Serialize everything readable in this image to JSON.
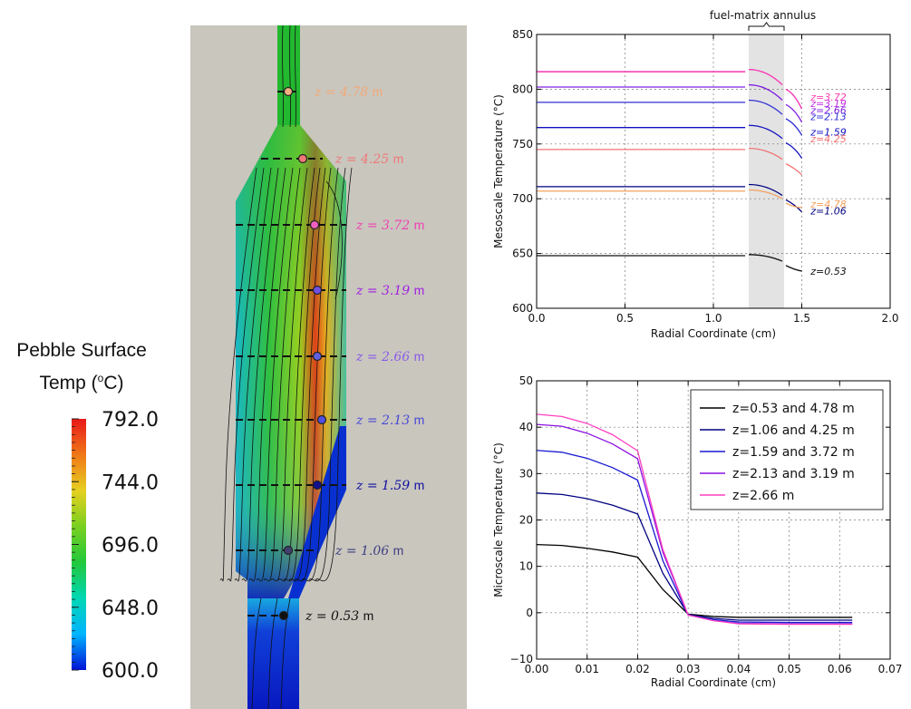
{
  "colorbar": {
    "title_line1": "Pebble Surface",
    "title_line2": "Temp (",
    "title_sup": "o",
    "title_line2_end": "C)",
    "ticks": [
      "792.0",
      "744.0",
      "696.0",
      "648.0",
      "600.0"
    ],
    "tick_values": [
      792,
      744,
      696,
      648,
      600
    ],
    "min": 600,
    "max": 792,
    "colors": [
      "#0014d6",
      "#00b4ff",
      "#00d7b4",
      "#22c83c",
      "#7ad020",
      "#e6d020",
      "#f07818",
      "#e81818"
    ]
  },
  "core": {
    "background": "#c9c6be",
    "labels": [
      {
        "z": "z = 4.78",
        "unit": "m",
        "color": "#f4a878"
      },
      {
        "z": "z = 4.25",
        "unit": "m",
        "color": "#f07878"
      },
      {
        "z": "z = 3.72",
        "unit": "m",
        "color": "#f040b0"
      },
      {
        "z": "z = 3.19",
        "unit": "m",
        "color": "#a020e0"
      },
      {
        "z": "z = 2.66",
        "unit": "m",
        "color": "#8a5ae8"
      },
      {
        "z": "z = 2.13",
        "unit": "m",
        "color": "#4848d8"
      },
      {
        "z": "z = 1.59",
        "unit": "m",
        "color": "#1010a0"
      },
      {
        "z": "z = 1.06",
        "unit": "m",
        "color": "#404080"
      },
      {
        "z": "z = 0.53",
        "unit": "m",
        "color": "#101010"
      }
    ]
  },
  "chart_data": [
    {
      "type": "line",
      "annotation": "fuel-matrix annulus",
      "xlabel": "Radial Coordinate (cm)",
      "ylabel": "Mesoscale Temperature (°C)",
      "xlim": [
        0.0,
        2.0
      ],
      "ylim": [
        600,
        850
      ],
      "xticks": [
        "0.0",
        "0.5",
        "1.0",
        "1.5",
        "2.0"
      ],
      "yticks": [
        "600",
        "650",
        "700",
        "750",
        "800",
        "850"
      ],
      "grid": true,
      "shaded_region": [
        1.2,
        1.4
      ],
      "series": [
        {
          "name": "z=0.53",
          "color": "#111111",
          "plateau": 648,
          "inner": 649,
          "mid": 643,
          "outer": 634
        },
        {
          "name": "z=1.06",
          "color": "#000080",
          "plateau": 711,
          "inner": 713,
          "mid": 703,
          "outer": 688
        },
        {
          "name": "z=4.78",
          "color": "#f4a060",
          "plateau": 707,
          "inner": 708,
          "mid": 700,
          "outer": 692
        },
        {
          "name": "z=4.25",
          "color": "#f07070",
          "plateau": 745,
          "inner": 746,
          "mid": 736,
          "outer": 722
        },
        {
          "name": "z=1.59",
          "color": "#1010c0",
          "plateau": 765,
          "inner": 767,
          "mid": 755,
          "outer": 737
        },
        {
          "name": "z=2.13",
          "color": "#3030d8",
          "plateau": 788,
          "inner": 790,
          "mid": 777,
          "outer": 758
        },
        {
          "name": "z=2.66",
          "color": "#8020e0",
          "plateau": 802,
          "inner": 804,
          "mid": 790,
          "outer": 770
        },
        {
          "name": "z=3.19",
          "color": "#c030e8",
          "plateau": 816,
          "inner": 818,
          "mid": 804,
          "outer": 782
        },
        {
          "name": "z=3.72",
          "color": "#ff40b0",
          "plateau": 816,
          "inner": 818,
          "mid": 804,
          "outer": 782
        }
      ],
      "right_labels": [
        {
          "text": "z=3.72",
          "color": "#ff40b0",
          "y": 793
        },
        {
          "text": "z=3.19",
          "color": "#c030e8",
          "y": 787
        },
        {
          "text": "z=2.66",
          "color": "#8020e0",
          "y": 781
        },
        {
          "text": "z=2.13",
          "color": "#3030d8",
          "y": 775
        },
        {
          "text": "z=1.59",
          "color": "#1010c0",
          "y": 761
        },
        {
          "text": "z=4.25",
          "color": "#f07070",
          "y": 755
        },
        {
          "text": "z=4.78",
          "color": "#f4a060",
          "y": 695
        },
        {
          "text": "z=1.06",
          "color": "#000080",
          "y": 689
        },
        {
          "text": "z=0.53",
          "color": "#111111",
          "y": 634
        }
      ]
    },
    {
      "type": "line",
      "xlabel": "Radial Coordinate (cm)",
      "ylabel": "Microscale Temperature (°C)",
      "xlim": [
        0.0,
        0.07
      ],
      "ylim": [
        -10,
        50
      ],
      "xticks": [
        "0.00",
        "0.01",
        "0.02",
        "0.03",
        "0.04",
        "0.05",
        "0.06",
        "0.07"
      ],
      "yticks": [
        "-10",
        "0",
        "10",
        "20",
        "30",
        "40",
        "50"
      ],
      "grid": true,
      "legend_position": "top-right",
      "x": [
        0.0,
        0.005,
        0.01,
        0.015,
        0.02,
        0.025,
        0.03,
        0.035,
        0.04,
        0.05,
        0.0625
      ],
      "series": [
        {
          "name": "z=0.53 and 4.78 m",
          "color": "#000000",
          "values": [
            14.7,
            14.5,
            13.9,
            13.1,
            12.0,
            5.0,
            -0.3,
            -0.8,
            -1.0,
            -1.0,
            -1.0
          ]
        },
        {
          "name": "z=1.06 and 4.25 m",
          "color": "#000080",
          "values": [
            25.8,
            25.5,
            24.6,
            23.2,
            21.3,
            8.5,
            -0.4,
            -1.2,
            -1.6,
            -1.6,
            -1.6
          ]
        },
        {
          "name": "z=1.59 and 3.72 m",
          "color": "#1a1ad0",
          "values": [
            35.0,
            34.6,
            33.3,
            31.3,
            28.6,
            11.2,
            -0.5,
            -1.5,
            -2.0,
            -2.1,
            -2.1
          ]
        },
        {
          "name": "z=2.13 and 3.19 m",
          "color": "#8a10e0",
          "values": [
            40.6,
            40.2,
            38.7,
            36.4,
            33.2,
            13.0,
            -0.5,
            -1.7,
            -2.3,
            -2.4,
            -2.4
          ]
        },
        {
          "name": "z=2.66 m",
          "color": "#ff40c0",
          "values": [
            42.8,
            42.3,
            40.8,
            38.4,
            34.9,
            13.6,
            -0.5,
            -1.7,
            -2.4,
            -2.5,
            -2.5
          ]
        }
      ]
    }
  ]
}
